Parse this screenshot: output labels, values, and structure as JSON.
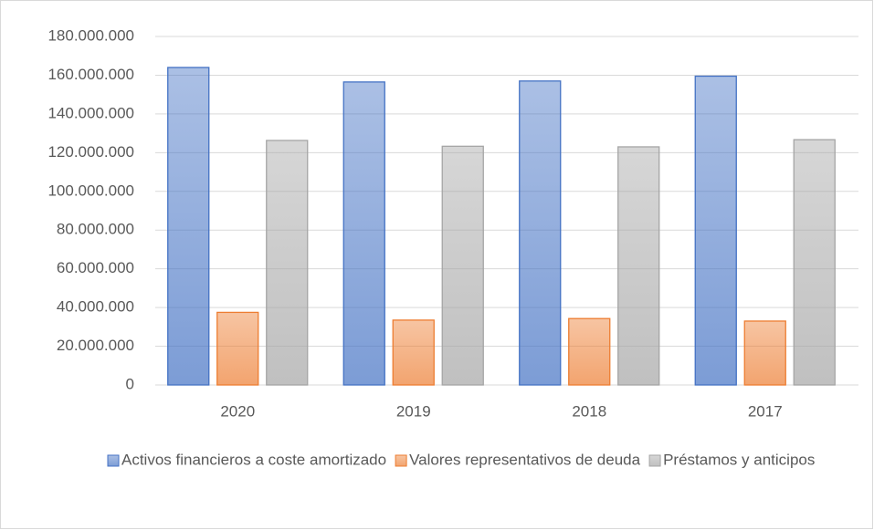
{
  "chart_data": {
    "type": "bar",
    "categories": [
      "2020",
      "2019",
      "2018",
      "2017"
    ],
    "series": [
      {
        "name": "Activos financieros a coste amortizado",
        "color": "#4472c4",
        "values": [
          164000000,
          156500000,
          157000000,
          159500000
        ]
      },
      {
        "name": "Valores representativos de deuda",
        "color": "#ed7d31",
        "values": [
          37500000,
          33500000,
          34300000,
          33000000
        ]
      },
      {
        "name": "Préstamos y anticipos",
        "color": "#a5a5a5",
        "values": [
          126300000,
          123300000,
          123000000,
          126700000
        ]
      }
    ],
    "ylim": [
      0,
      180000000
    ],
    "yticks": [
      0,
      {
        "value": 20000000,
        "label": "20.000.000"
      },
      {
        "value": 40000000,
        "label": "40.000.000"
      },
      {
        "value": 60000000,
        "label": "60.000.000"
      },
      {
        "value": 80000000,
        "label": "80.000.000"
      },
      {
        "value": 100000000,
        "label": "100.000.000"
      },
      {
        "value": 120000000,
        "label": "120.000.000"
      },
      {
        "value": 140000000,
        "label": "140.000.000"
      },
      {
        "value": 160000000,
        "label": "160.000.000"
      },
      {
        "value": 180000000,
        "label": "180.000.000"
      }
    ],
    "grid": true,
    "legend": "bottom"
  }
}
